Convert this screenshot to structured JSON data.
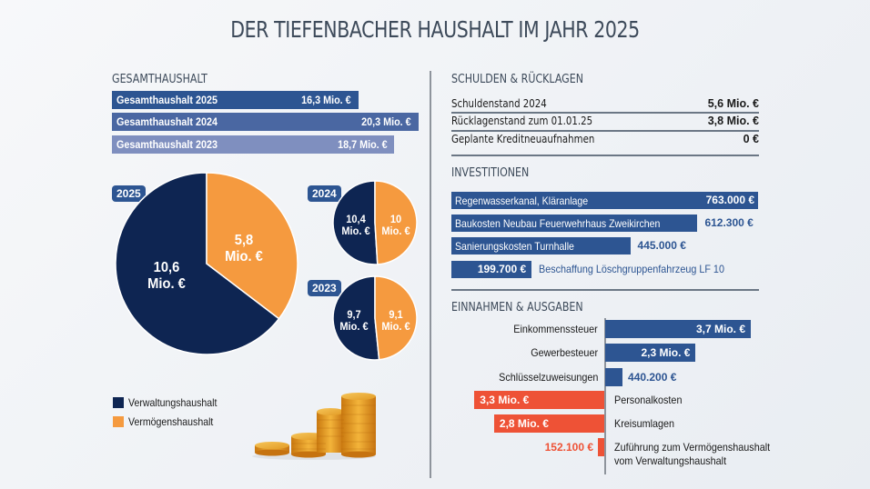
{
  "title": "DER TIEFENBACHER HAUSHALT IM JAHR 2025",
  "colors": {
    "verwaltung": "#0e2552",
    "vermoegen": "#f59a3f",
    "bar_2025": "#2d5592",
    "bar_2024": "#4a67a2",
    "bar_2023": "#7f8fbf",
    "income": "#2d5592",
    "expense": "#ee5236"
  },
  "gesamthaushalt": {
    "heading": "GESAMTHAUSHALT",
    "bars": [
      {
        "label": "Gesamthaushalt 2025",
        "value_text": "16,3 Mio. €",
        "value": 16.3
      },
      {
        "label": "Gesamthaushalt 2024",
        "value_text": "20,3 Mio. €",
        "value": 20.3
      },
      {
        "label": "Gesamthaushalt 2023",
        "value_text": "18,7 Mio. €",
        "value": 18.7
      }
    ]
  },
  "pies": [
    {
      "year": "2025",
      "verwaltung": 10.6,
      "vermoegen": 5.8,
      "verwaltung_line1": "10,6",
      "vermoegen_line1": "5,8",
      "unit": "Mio. €"
    },
    {
      "year": "2024",
      "verwaltung": 10.4,
      "vermoegen": 10.0,
      "verwaltung_line1": "10,4",
      "vermoegen_line1": "10",
      "unit": "Mio. €"
    },
    {
      "year": "2023",
      "verwaltung": 9.7,
      "vermoegen": 9.1,
      "verwaltung_line1": "9,7",
      "vermoegen_line1": "9,1",
      "unit": "Mio. €"
    }
  ],
  "legend": [
    {
      "label": "Verwaltungshaushalt",
      "color_key": "verwaltung"
    },
    {
      "label": "Vermögenshaushalt",
      "color_key": "vermoegen"
    }
  ],
  "schulden": {
    "heading": "SCHULDEN & RÜCKLAGEN",
    "rows": [
      {
        "label": "Schuldenstand 2024",
        "value": "5,6 Mio. €"
      },
      {
        "label": "Rücklagenstand zum 01.01.25",
        "value": "3,8 Mio. €"
      },
      {
        "label": "Geplante Kreditneuaufnahmen",
        "value": "0 €"
      }
    ]
  },
  "investitionen": {
    "heading": "INVESTITIONEN",
    "items": [
      {
        "label": "Regenwasserkanal, Kläranlage",
        "value_text": "763.000 €",
        "value": 763000
      },
      {
        "label": "Baukosten Neubau Feuerwehrhaus Zweikirchen",
        "value_text": "612.300 €",
        "value": 612300
      },
      {
        "label": "Sanierungskosten Turnhalle",
        "value_text": "445.000  €",
        "value": 445000
      },
      {
        "label": "Beschaffung Löschgruppenfahrzeug LF 10",
        "value_text": "199.700 €",
        "value": 199700
      }
    ]
  },
  "einnahmen_ausgaben": {
    "heading": "EINNAHMEN & AUSGABEN",
    "items": [
      {
        "label": "Einkommenssteuer",
        "value_text": "3,7 Mio. €",
        "value": 3700000,
        "type": "income"
      },
      {
        "label": "Gewerbesteuer",
        "value_text": "2,3 Mio. €",
        "value": 2300000,
        "type": "income"
      },
      {
        "label": "Schlüsselzuweisungen",
        "value_text": "440.200 €",
        "value": 440200,
        "type": "income"
      },
      {
        "label": "Personalkosten",
        "value_text": "3,3 Mio. €",
        "value": 3300000,
        "type": "expense"
      },
      {
        "label": "Kreisumlagen",
        "value_text": "2,8 Mio. €",
        "value": 2800000,
        "type": "expense"
      },
      {
        "label": "Zuführung zum Vermögenshaushalt",
        "label2": "vom Verwaltungshaushalt",
        "value_text": "152.100 €",
        "value": 152100,
        "type": "expense"
      }
    ]
  },
  "chart_data": [
    {
      "type": "bar",
      "title": "GESAMTHAUSHALT",
      "categories": [
        "Gesamthaushalt 2025",
        "Gesamthaushalt 2024",
        "Gesamthaushalt 2023"
      ],
      "values": [
        16.3,
        20.3,
        18.7
      ],
      "unit": "Mio. €",
      "orientation": "horizontal"
    },
    {
      "type": "pie",
      "title": "2025",
      "categories": [
        "Verwaltungshaushalt",
        "Vermögenshaushalt"
      ],
      "values": [
        10.6,
        5.8
      ],
      "unit": "Mio. €"
    },
    {
      "type": "pie",
      "title": "2024",
      "categories": [
        "Verwaltungshaushalt",
        "Vermögenshaushalt"
      ],
      "values": [
        10.4,
        10.0
      ],
      "unit": "Mio. €"
    },
    {
      "type": "pie",
      "title": "2023",
      "categories": [
        "Verwaltungshaushalt",
        "Vermögenshaushalt"
      ],
      "values": [
        9.7,
        9.1
      ],
      "unit": "Mio. €"
    },
    {
      "type": "bar",
      "title": "INVESTITIONEN",
      "categories": [
        "Regenwasserkanal, Kläranlage",
        "Baukosten Neubau Feuerwehrhaus Zweikirchen",
        "Sanierungskosten Turnhalle",
        "Beschaffung Löschgruppenfahrzeug LF 10"
      ],
      "values": [
        763000,
        612300,
        445000,
        199700
      ],
      "unit": "€",
      "orientation": "horizontal"
    },
    {
      "type": "bar",
      "title": "EINNAHMEN & AUSGABEN",
      "categories": [
        "Einkommenssteuer",
        "Gewerbesteuer",
        "Schlüsselzuweisungen",
        "Personalkosten",
        "Kreisumlagen",
        "Zuführung zum Vermögenshaushalt vom Verwaltungshaushalt"
      ],
      "series": [
        {
          "name": "Einnahmen",
          "values": [
            3700000,
            2300000,
            440200,
            null,
            null,
            null
          ]
        },
        {
          "name": "Ausgaben",
          "values": [
            null,
            null,
            null,
            3300000,
            2800000,
            152100
          ]
        }
      ],
      "unit": "€",
      "orientation": "horizontal-diverging"
    }
  ]
}
